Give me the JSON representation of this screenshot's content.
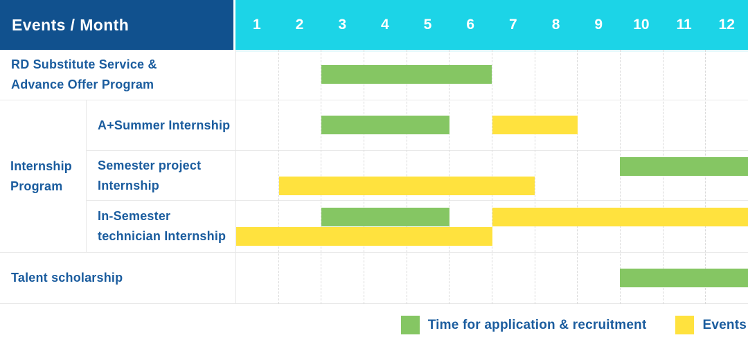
{
  "header": {
    "title": "Events / Month",
    "months": [
      "1",
      "2",
      "3",
      "4",
      "5",
      "6",
      "7",
      "8",
      "9",
      "10",
      "11",
      "12"
    ]
  },
  "legend": {
    "items": [
      {
        "series": "application",
        "label": "Time for application & recruitment",
        "color": "#85c663"
      },
      {
        "series": "events",
        "label": "Events",
        "color": "#ffe23e"
      }
    ]
  },
  "colors": {
    "header_bg": "#11518e",
    "months_bg": "#1cd4e7",
    "row_label_text": "#1a5c9e",
    "application_bar": "#85c663",
    "events_bar": "#ffe23e",
    "grid_line": "#e8e8e8"
  },
  "chart_data": {
    "type": "gantt",
    "title": "Events / Month",
    "x_axis": {
      "unit": "month",
      "ticks": [
        "1",
        "2",
        "3",
        "4",
        "5",
        "6",
        "7",
        "8",
        "9",
        "10",
        "11",
        "12"
      ],
      "range": [
        1,
        12
      ]
    },
    "series_colors": {
      "application": "#85c663",
      "events": "#ffe23e"
    },
    "series_legend": {
      "application": "Time for application & recruitment",
      "events": "Events"
    },
    "group_label": "Internship Program",
    "rows": [
      {
        "label": "RD Substitute Service & Advance Offer Program",
        "group": "",
        "bars": [
          {
            "series": "application",
            "start_month": 3,
            "end_month": 6,
            "line": "center"
          }
        ]
      },
      {
        "label": "A+Summer Internship",
        "group": "Internship Program",
        "bars": [
          {
            "series": "application",
            "start_month": 3,
            "end_month": 5,
            "line": "center"
          },
          {
            "series": "events",
            "start_month": 7,
            "end_month": 8,
            "line": "center"
          }
        ]
      },
      {
        "label": "Semester project Internship",
        "group": "Internship Program",
        "bars": [
          {
            "series": "application",
            "start_month": 10,
            "end_month": 12,
            "line": "top"
          },
          {
            "series": "events",
            "start_month": 2,
            "end_month": 7,
            "line": "bottom"
          }
        ]
      },
      {
        "label": "In-Semester technician Internship",
        "group": "Internship Program",
        "bars": [
          {
            "series": "application",
            "start_month": 3,
            "end_month": 5,
            "line": "top"
          },
          {
            "series": "events",
            "start_month": 7,
            "end_month": 12,
            "line": "top"
          },
          {
            "series": "events",
            "start_month": 1,
            "end_month": 6,
            "line": "bottom"
          }
        ]
      },
      {
        "label": "Talent scholarship",
        "group": "",
        "bars": [
          {
            "series": "application",
            "start_month": 10,
            "end_month": 12,
            "line": "center"
          }
        ]
      }
    ]
  }
}
